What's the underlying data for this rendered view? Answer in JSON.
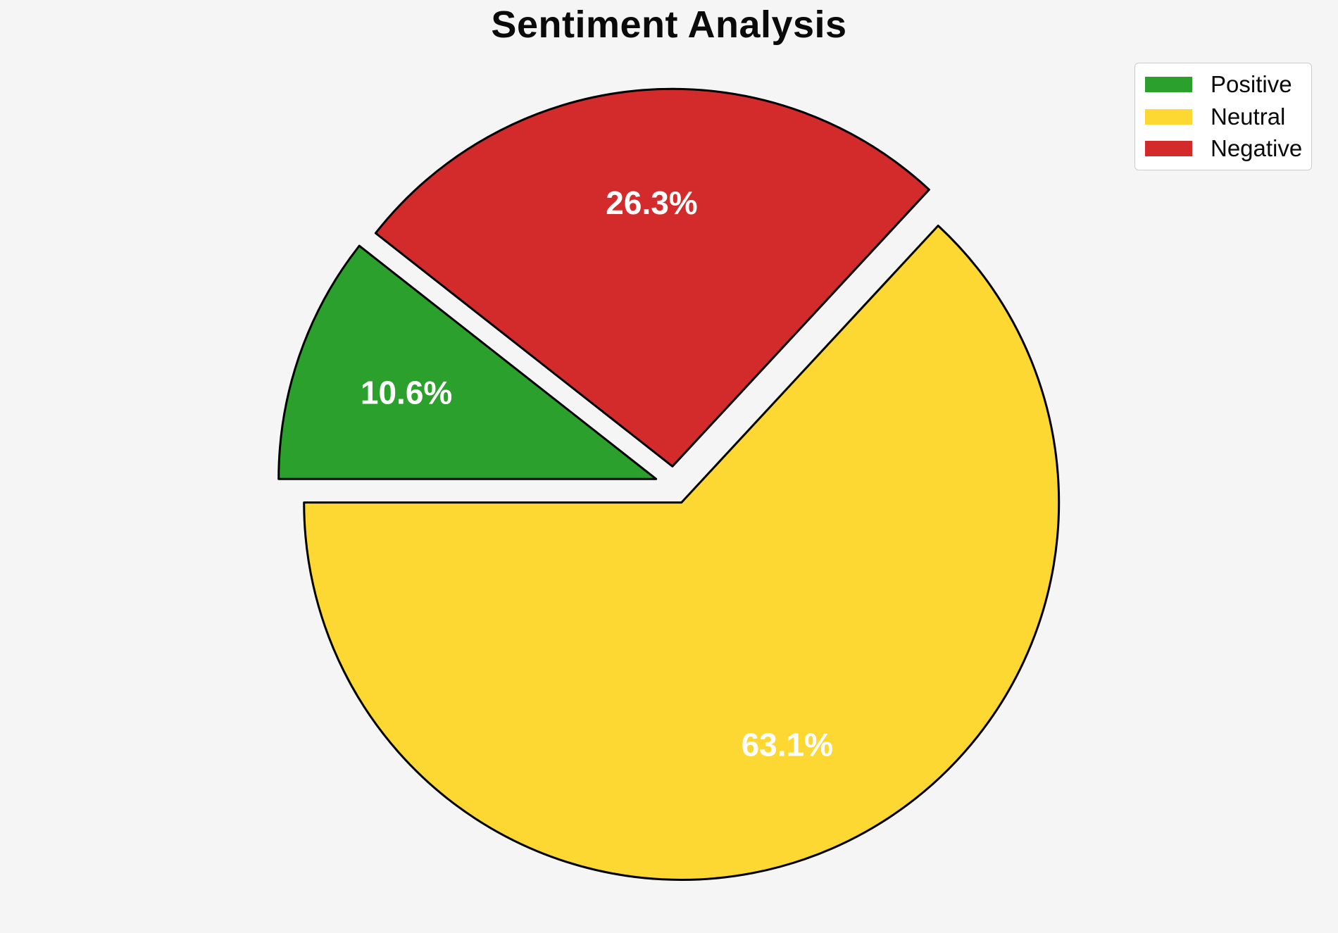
{
  "chart_data": {
    "type": "pie",
    "title": "Sentiment Analysis",
    "labels": [
      "Positive",
      "Neutral",
      "Negative"
    ],
    "values": [
      10.6,
      63.1,
      26.3
    ],
    "pct_labels": [
      "10.6%",
      "63.1%",
      "26.3%"
    ],
    "colors": [
      "#2CA02C",
      "#FDD732",
      "#D32B2B"
    ],
    "edge_color": "#000000",
    "pct_label_color": "#FFFFFF",
    "background_color": "#F5F5F5",
    "start_angle": 141.84,
    "counterclockwise": true,
    "explode": 0.05,
    "pct_distance": 0.7,
    "legend": {
      "position": "upper right",
      "items": [
        {
          "label": "Positive",
          "color": "#2CA02C"
        },
        {
          "label": "Neutral",
          "color": "#FDD732"
        },
        {
          "label": "Negative",
          "color": "#D32B2B"
        }
      ]
    }
  }
}
